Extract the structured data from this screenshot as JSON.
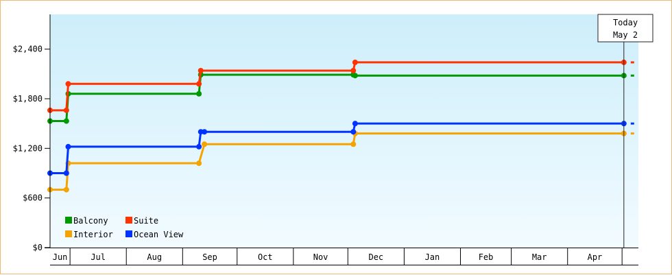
{
  "colors": {
    "balcony": "#009900",
    "suite": "#ff3300",
    "interior": "#f5a300",
    "ocean_view": "#0033ff",
    "plot_bg_top": "#cdeefb",
    "plot_bg_bottom": "#f2fbff",
    "frame_border": "#f0b878"
  },
  "today_marker": {
    "line1": "Today",
    "line2": "May 2",
    "date": "2025-05-02"
  },
  "chart_data": {
    "type": "line",
    "step": true,
    "title": "",
    "xlabel": "",
    "ylabel": "",
    "ylim": [
      0,
      2820
    ],
    "y_ticks": [
      0,
      600,
      1200,
      1800,
      2400
    ],
    "y_tick_labels": [
      "$0",
      "$600",
      "$1,200",
      "$1,800",
      "$2,400"
    ],
    "x_month_labels": [
      {
        "label": "Jun",
        "start": "2024-06-01",
        "end": "2024-07-01"
      },
      {
        "label": "Jul",
        "start": "2024-07-01",
        "end": "2024-08-01"
      },
      {
        "label": "Aug",
        "start": "2024-08-01",
        "end": "2024-09-01"
      },
      {
        "label": "Sep",
        "start": "2024-09-01",
        "end": "2024-10-01"
      },
      {
        "label": "Oct",
        "start": "2024-10-01",
        "end": "2024-11-01"
      },
      {
        "label": "Nov",
        "start": "2024-11-01",
        "end": "2024-12-01"
      },
      {
        "label": "Dec",
        "start": "2024-12-01",
        "end": "2025-01-01"
      },
      {
        "label": "Jan",
        "start": "2025-01-01",
        "end": "2025-02-01"
      },
      {
        "label": "Feb",
        "start": "2025-02-01",
        "end": "2025-03-01"
      },
      {
        "label": "Mar",
        "start": "2025-03-01",
        "end": "2025-04-01"
      },
      {
        "label": "Apr",
        "start": "2025-04-01",
        "end": "2025-05-01"
      }
    ],
    "x_range": [
      "2024-06-20",
      "2025-05-10"
    ],
    "grid": false,
    "legend_position": "bottom-left",
    "series": [
      {
        "name": "Balcony",
        "color_key": "balcony",
        "points": [
          {
            "x": "2024-06-20",
            "y": 1530
          },
          {
            "x": "2024-06-29",
            "y": 1530
          },
          {
            "x": "2024-06-30",
            "y": 1860
          },
          {
            "x": "2024-09-10",
            "y": 1860
          },
          {
            "x": "2024-09-11",
            "y": 2090
          },
          {
            "x": "2024-12-04",
            "y": 2090
          },
          {
            "x": "2024-12-05",
            "y": 2080
          },
          {
            "x": "2025-05-02",
            "y": 2080
          }
        ]
      },
      {
        "name": "Suite",
        "color_key": "suite",
        "points": [
          {
            "x": "2024-06-20",
            "y": 1660
          },
          {
            "x": "2024-06-29",
            "y": 1660
          },
          {
            "x": "2024-06-30",
            "y": 1980
          },
          {
            "x": "2024-09-10",
            "y": 1980
          },
          {
            "x": "2024-09-11",
            "y": 2140
          },
          {
            "x": "2024-12-04",
            "y": 2140
          },
          {
            "x": "2024-12-05",
            "y": 2240
          },
          {
            "x": "2025-05-02",
            "y": 2240
          }
        ]
      },
      {
        "name": "Interior",
        "color_key": "interior",
        "points": [
          {
            "x": "2024-06-20",
            "y": 700
          },
          {
            "x": "2024-06-29",
            "y": 700
          },
          {
            "x": "2024-06-30",
            "y": 1020
          },
          {
            "x": "2024-09-10",
            "y": 1020
          },
          {
            "x": "2024-09-13",
            "y": 1250
          },
          {
            "x": "2024-12-04",
            "y": 1250
          },
          {
            "x": "2024-12-05",
            "y": 1380
          },
          {
            "x": "2025-05-02",
            "y": 1380
          }
        ]
      },
      {
        "name": "Ocean View",
        "color_key": "ocean_view",
        "points": [
          {
            "x": "2024-06-20",
            "y": 900
          },
          {
            "x": "2024-06-29",
            "y": 900
          },
          {
            "x": "2024-06-30",
            "y": 1220
          },
          {
            "x": "2024-09-10",
            "y": 1220
          },
          {
            "x": "2024-09-11",
            "y": 1400
          },
          {
            "x": "2024-09-13",
            "y": 1400
          },
          {
            "x": "2024-12-04",
            "y": 1400
          },
          {
            "x": "2024-12-05",
            "y": 1500
          },
          {
            "x": "2025-05-02",
            "y": 1500
          }
        ]
      }
    ]
  }
}
